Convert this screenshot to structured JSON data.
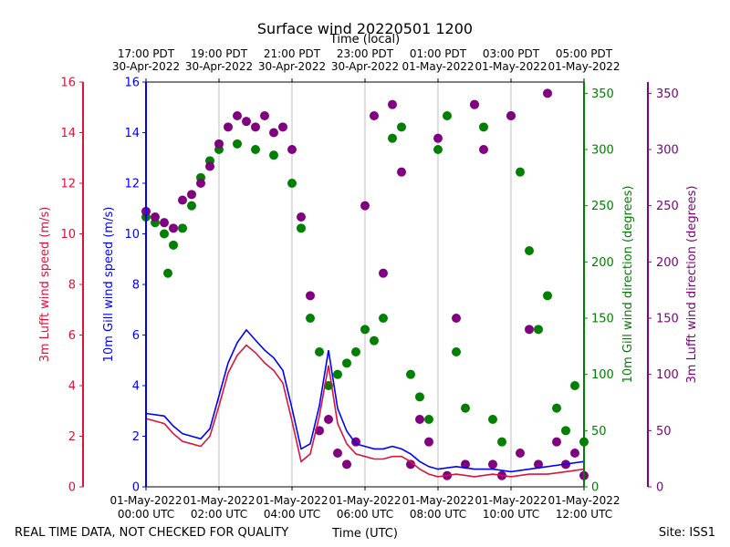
{
  "chart_data": {
    "type": "line+scatter",
    "title": "Surface wind 20220501 1200",
    "top_axis_label": "Time (local)",
    "top_ticks": [
      {
        "line1": "17:00 PDT",
        "line2": "30-Apr-2022"
      },
      {
        "line1": "19:00 PDT",
        "line2": "30-Apr-2022"
      },
      {
        "line1": "21:00 PDT",
        "line2": "30-Apr-2022"
      },
      {
        "line1": "23:00 PDT",
        "line2": "30-Apr-2022"
      },
      {
        "line1": "01:00 PDT",
        "line2": "01-May-2022"
      },
      {
        "line1": "03:00 PDT",
        "line2": "01-May-2022"
      },
      {
        "line1": "05:00 PDT",
        "line2": "01-May-2022"
      }
    ],
    "bottom_axis_label": "Time (UTC)",
    "bottom_ticks": [
      {
        "line1": "01-May-2022",
        "line2": "00:00 UTC"
      },
      {
        "line1": "01-May-2022",
        "line2": "02:00 UTC"
      },
      {
        "line1": "01-May-2022",
        "line2": "04:00 UTC"
      },
      {
        "line1": "01-May-2022",
        "line2": "06:00 UTC"
      },
      {
        "line1": "01-May-2022",
        "line2": "08:00 UTC"
      },
      {
        "line1": "01-May-2022",
        "line2": "10:00 UTC"
      },
      {
        "line1": "01-May-2022",
        "line2": "12:00 UTC"
      }
    ],
    "x_range_hours": [
      0,
      12
    ],
    "speed_range": [
      0,
      16
    ],
    "speed_ticks": [
      "0",
      "2",
      "4",
      "6",
      "8",
      "10",
      "12",
      "14",
      "16"
    ],
    "direction_range": [
      0,
      360
    ],
    "direction_ticks": [
      "0",
      "50",
      "100",
      "150",
      "200",
      "250",
      "300",
      "350"
    ],
    "axes": {
      "lufft_speed": {
        "label": "3m Lufft wind speed (m/s)",
        "color": "#dc143c"
      },
      "gill_speed": {
        "label": "10m Gill wind speed (m/s)",
        "color": "#0000ff"
      },
      "gill_dir": {
        "label": "10m Gill wind direction (degrees)",
        "color": "#008000"
      },
      "lufft_dir": {
        "label": "3m Lufft wind direction (degrees)",
        "color": "#800080"
      }
    },
    "series": [
      {
        "name": "10m Gill wind speed",
        "kind": "line",
        "axis": "speed",
        "color": "#0000ff",
        "hours": [
          0,
          0.5,
          0.75,
          1,
          1.25,
          1.5,
          1.75,
          2,
          2.25,
          2.5,
          2.75,
          3,
          3.25,
          3.5,
          3.75,
          4,
          4.25,
          4.5,
          4.75,
          5,
          5.25,
          5.5,
          5.75,
          6,
          6.25,
          6.5,
          6.75,
          7,
          7.25,
          7.5,
          7.75,
          8,
          8.5,
          9,
          9.5,
          10,
          10.5,
          11,
          11.5,
          12
        ],
        "values": [
          2.9,
          2.8,
          2.4,
          2.1,
          2.0,
          1.9,
          2.3,
          3.6,
          4.9,
          5.7,
          6.2,
          5.8,
          5.4,
          5.1,
          4.6,
          3.1,
          1.5,
          1.7,
          3.2,
          5.4,
          3.1,
          2.2,
          1.7,
          1.6,
          1.5,
          1.5,
          1.6,
          1.5,
          1.3,
          1.0,
          0.8,
          0.7,
          0.8,
          0.7,
          0.7,
          0.6,
          0.7,
          0.8,
          0.9,
          1.0
        ]
      },
      {
        "name": "3m Lufft wind speed",
        "kind": "line",
        "axis": "speed",
        "color": "#dc143c",
        "hours": [
          0,
          0.5,
          0.75,
          1,
          1.25,
          1.5,
          1.75,
          2,
          2.25,
          2.5,
          2.75,
          3,
          3.25,
          3.5,
          3.75,
          4,
          4.25,
          4.5,
          4.75,
          5,
          5.25,
          5.5,
          5.75,
          6,
          6.25,
          6.5,
          6.75,
          7,
          7.25,
          7.5,
          7.75,
          8,
          8.5,
          9,
          9.5,
          10,
          10.5,
          11,
          11.5,
          12
        ],
        "values": [
          2.7,
          2.5,
          2.1,
          1.8,
          1.7,
          1.6,
          2.0,
          3.2,
          4.5,
          5.2,
          5.6,
          5.3,
          4.9,
          4.6,
          4.1,
          2.6,
          1.0,
          1.3,
          2.8,
          4.8,
          2.5,
          1.7,
          1.3,
          1.2,
          1.1,
          1.1,
          1.2,
          1.2,
          1.0,
          0.7,
          0.5,
          0.4,
          0.5,
          0.4,
          0.5,
          0.4,
          0.5,
          0.5,
          0.6,
          0.7
        ]
      },
      {
        "name": "10m Gill wind direction",
        "kind": "scatter",
        "axis": "direction",
        "color": "#008000",
        "hours": [
          0,
          0.25,
          0.5,
          0.6,
          0.75,
          1,
          1.25,
          1.5,
          1.75,
          2,
          2.5,
          3,
          3.5,
          4,
          4.25,
          4.5,
          4.75,
          5,
          5.25,
          5.5,
          5.75,
          6,
          6.25,
          6.5,
          6.75,
          7,
          7.25,
          7.5,
          7.75,
          8,
          8.25,
          8.5,
          8.75,
          9,
          9.25,
          9.5,
          9.75,
          10,
          10.25,
          10.5,
          10.75,
          11,
          11.25,
          11.5,
          11.75,
          12
        ],
        "values": [
          240,
          235,
          225,
          190,
          215,
          230,
          250,
          275,
          290,
          300,
          305,
          300,
          295,
          270,
          230,
          150,
          120,
          90,
          100,
          110,
          120,
          140,
          130,
          150,
          310,
          320,
          100,
          80,
          60,
          300,
          330,
          120,
          70,
          340,
          320,
          60,
          40,
          330,
          280,
          210,
          140,
          170,
          70,
          50,
          90,
          40
        ]
      },
      {
        "name": "3m Lufft wind direction",
        "kind": "scatter",
        "axis": "direction",
        "color": "#800080",
        "hours": [
          0,
          0.25,
          0.5,
          0.75,
          1,
          1.25,
          1.5,
          1.75,
          2,
          2.25,
          2.5,
          2.75,
          3,
          3.25,
          3.5,
          3.75,
          4,
          4.25,
          4.5,
          4.75,
          5,
          5.25,
          5.5,
          5.75,
          6,
          6.25,
          6.5,
          6.75,
          7,
          7.25,
          7.5,
          7.75,
          8,
          8.25,
          8.5,
          8.75,
          9,
          9.25,
          9.5,
          9.75,
          10,
          10.25,
          10.5,
          10.75,
          11,
          11.25,
          11.5,
          11.75,
          12
        ],
        "values": [
          245,
          240,
          235,
          230,
          255,
          260,
          270,
          285,
          305,
          320,
          330,
          325,
          320,
          330,
          315,
          320,
          300,
          240,
          170,
          50,
          60,
          30,
          20,
          40,
          250,
          330,
          190,
          340,
          280,
          20,
          60,
          40,
          310,
          10,
          150,
          20,
          340,
          300,
          20,
          10,
          330,
          30,
          140,
          20,
          350,
          40,
          20,
          30,
          10
        ]
      }
    ]
  },
  "footer": {
    "left_note": "REAL TIME DATA, NOT CHECKED FOR QUALITY",
    "site": "Site: ISS1"
  }
}
